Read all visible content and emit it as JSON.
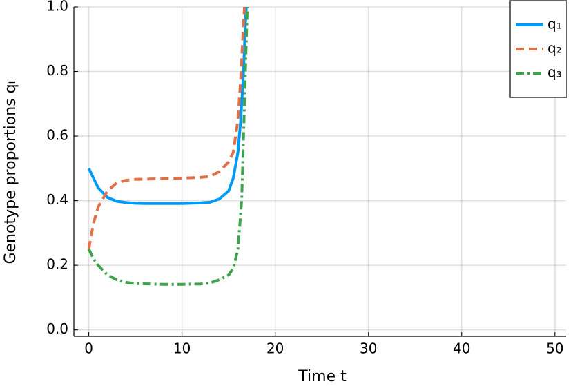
{
  "chart_data": {
    "type": "line",
    "xlabel": "Time t",
    "ylabel": "Genotype proportions qᵢ",
    "xlim": [
      -1.6,
      51.2
    ],
    "ylim": [
      -0.02,
      1.0
    ],
    "xticks": [
      0,
      10,
      20,
      30,
      40,
      50
    ],
    "yticks": [
      {
        "value": 0,
        "label": "0.0"
      },
      0.2,
      0.4,
      0.6,
      0.8,
      {
        "value": 1,
        "label": "1.0"
      }
    ],
    "grid": true,
    "legend": "top-right",
    "series": [
      {
        "name": "q₁",
        "color": "#009af9",
        "style": "solid",
        "x": [
          0,
          0.5,
          1,
          2,
          3,
          4,
          5,
          6,
          8,
          10,
          12,
          13,
          14,
          15,
          15.5,
          16,
          16.3,
          16.6,
          16.8,
          16.9
        ],
        "values": [
          0.5,
          0.47,
          0.44,
          0.41,
          0.398,
          0.394,
          0.392,
          0.391,
          0.391,
          0.391,
          0.393,
          0.395,
          0.405,
          0.43,
          0.47,
          0.55,
          0.65,
          0.8,
          0.95,
          1.0
        ]
      },
      {
        "name": "q₂",
        "color": "#e26f46",
        "style": "dash",
        "x": [
          0,
          0.5,
          1,
          2,
          3,
          4,
          5,
          8,
          10,
          12,
          13,
          14,
          15,
          15.5,
          16,
          16.3,
          16.6,
          16.7
        ],
        "values": [
          0.25,
          0.33,
          0.38,
          0.43,
          0.455,
          0.463,
          0.466,
          0.468,
          0.47,
          0.472,
          0.475,
          0.49,
          0.52,
          0.55,
          0.65,
          0.78,
          0.95,
          1.0
        ]
      },
      {
        "name": "q₃",
        "color": "#3da44d",
        "style": "dashdot",
        "x": [
          0,
          0.5,
          1,
          2,
          3,
          4,
          5,
          8,
          10,
          12,
          13,
          14,
          15,
          15.5,
          16,
          16.4,
          16.7,
          16.9,
          17
        ],
        "values": [
          0.25,
          0.22,
          0.2,
          0.17,
          0.155,
          0.147,
          0.143,
          0.141,
          0.141,
          0.142,
          0.145,
          0.155,
          0.17,
          0.19,
          0.25,
          0.4,
          0.7,
          0.9,
          1.0
        ]
      }
    ]
  }
}
